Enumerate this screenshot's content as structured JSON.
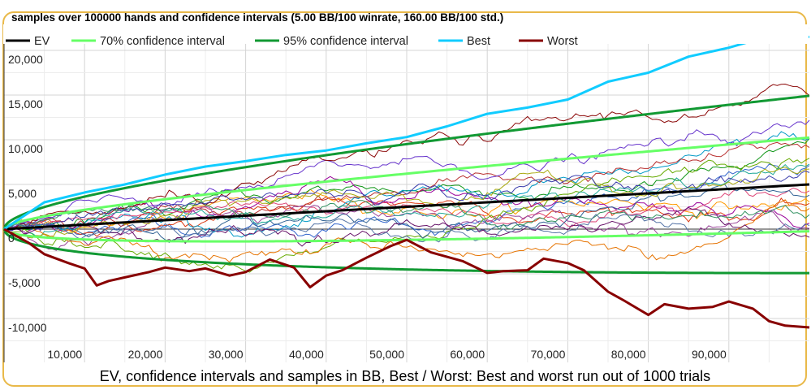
{
  "chart_data": {
    "type": "line",
    "title": "samples over 100000 hands and confidence intervals (5.00 BB/100 winrate, 160.00 BB/100 std.)",
    "caption": "EV, confidence intervals and samples in BB, Best / Worst: Best and worst run out of 1000 trials",
    "xlim": [
      0,
      100000
    ],
    "ylim": [
      -15000,
      22600
    ],
    "x_ticks": [
      10000,
      20000,
      30000,
      40000,
      50000,
      60000,
      70000,
      80000,
      90000
    ],
    "x_tick_labels": [
      "10,000",
      "20,000",
      "30,000",
      "40,000",
      "50,000",
      "60,000",
      "70,000",
      "80,000",
      "90,000"
    ],
    "y_ticks": [
      -10000,
      -5000,
      0,
      5000,
      10000,
      15000,
      20000
    ],
    "y_tick_labels": [
      "-10,000",
      "-5,000",
      "0",
      "5,000",
      "10,000",
      "15,000",
      "20,000"
    ],
    "grid": true,
    "legend_placement": "top",
    "winrate_bb_per_100": 5.0,
    "std_bb_per_100": 160.0,
    "hands": 100000,
    "trials": 1000,
    "legend": [
      {
        "name": "EV",
        "color": "#000000"
      },
      {
        "name": "70% confidence interval",
        "color": "#66ff66"
      },
      {
        "name": "95% confidence interval",
        "color": "#119933"
      },
      {
        "name": "Best",
        "color": "#11ccff"
      },
      {
        "name": "Worst",
        "color": "#880000"
      }
    ],
    "ci_z": {
      "70": 1.036,
      "95": 1.96
    },
    "best": {
      "x": [
        0,
        5000,
        10000,
        15000,
        20000,
        25000,
        30000,
        35000,
        40000,
        45000,
        50000,
        55000,
        60000,
        65000,
        70000,
        75000,
        80000,
        85000,
        90000,
        95000,
        100000
      ],
      "y": [
        0,
        3000,
        4100,
        5000,
        6100,
        7000,
        7600,
        8300,
        8800,
        9600,
        10300,
        11500,
        12900,
        13600,
        14500,
        16500,
        17500,
        19300,
        20300,
        21600,
        21500
      ]
    },
    "worst": {
      "x": [
        0,
        3000,
        5000,
        8000,
        10000,
        11500,
        13000,
        15000,
        18000,
        20000,
        23000,
        25000,
        28000,
        30000,
        33000,
        36000,
        38000,
        40000,
        42000,
        45000,
        48000,
        50000,
        53000,
        57000,
        60000,
        62000,
        65000,
        67000,
        70000,
        72000,
        75000,
        77000,
        80000,
        82000,
        85000,
        88000,
        90000,
        93000,
        95000,
        97000,
        100000
      ],
      "y": [
        0,
        -1500,
        -2800,
        -3800,
        -4400,
        -6300,
        -5800,
        -5400,
        -4800,
        -4300,
        -4700,
        -4400,
        -5200,
        -4800,
        -3400,
        -4300,
        -6500,
        -5200,
        -4600,
        -3200,
        -1900,
        -1200,
        -2600,
        -3600,
        -4900,
        -4700,
        -4600,
        -3300,
        -3800,
        -4600,
        -7000,
        -8000,
        -9600,
        -8400,
        -8900,
        -8700,
        -8100,
        -8900,
        -10300,
        -10800,
        -11000
      ]
    },
    "sample_colors": [
      "#3366cc",
      "#dc3912",
      "#ff9900",
      "#109618",
      "#990099",
      "#0099c6",
      "#dd4477",
      "#66aa00",
      "#b82e2e",
      "#316395",
      "#994499",
      "#22aa99",
      "#aaaa11",
      "#6633cc",
      "#e67300",
      "#8b0707",
      "#651067",
      "#329262",
      "#5574a6",
      "#3b3eac"
    ]
  }
}
